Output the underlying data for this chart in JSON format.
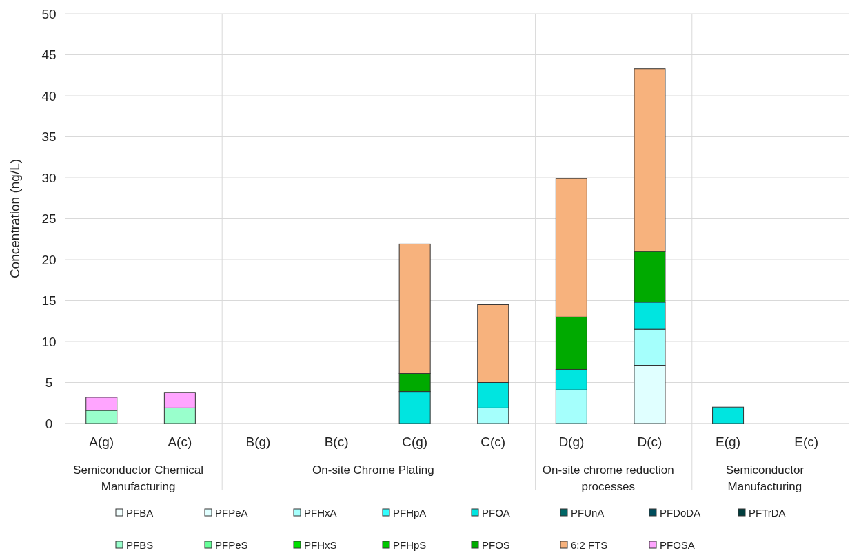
{
  "chart_data": {
    "type": "bar",
    "stacked": true,
    "ylabel": "Concentration (ng/L)",
    "categories": [
      "A(g)",
      "A(c)",
      "B(g)",
      "B(c)",
      "C(g)",
      "C(c)",
      "D(g)",
      "D(c)",
      "E(g)",
      "E(c)"
    ],
    "ylim": [
      0,
      50
    ],
    "yticks": [
      0,
      5,
      10,
      15,
      20,
      25,
      30,
      35,
      40,
      45,
      50
    ],
    "grid": "y",
    "legend": "bottom",
    "series": [
      {
        "name": "PFBA",
        "color": "#f2ffff",
        "values": [
          null,
          null,
          null,
          null,
          null,
          null,
          null,
          null,
          null,
          null
        ]
      },
      {
        "name": "PFPeA",
        "color": "#e0ffff",
        "values": [
          null,
          null,
          null,
          null,
          null,
          null,
          null,
          7.1,
          null,
          null
        ]
      },
      {
        "name": "PFHxA",
        "color": "#a5fffc",
        "values": [
          null,
          null,
          null,
          null,
          null,
          1.9,
          4.1,
          4.4,
          null,
          null
        ]
      },
      {
        "name": "PFHpA",
        "color": "#33ffff",
        "values": [
          null,
          null,
          null,
          null,
          null,
          null,
          null,
          null,
          null,
          null
        ]
      },
      {
        "name": "PFOA",
        "color": "#00e5e0",
        "values": [
          null,
          null,
          null,
          null,
          3.9,
          3.1,
          2.5,
          3.3,
          2.0,
          null
        ]
      },
      {
        "name": "PFUnA",
        "color": "#006666",
        "values": [
          null,
          null,
          null,
          null,
          null,
          null,
          null,
          null,
          null,
          null
        ]
      },
      {
        "name": "PFDoDA",
        "color": "#004d5c",
        "values": [
          null,
          null,
          null,
          null,
          null,
          null,
          null,
          null,
          null,
          null
        ]
      },
      {
        "name": "PFTrDA",
        "color": "#003d3d",
        "values": [
          null,
          null,
          null,
          null,
          null,
          null,
          null,
          null,
          null,
          null
        ]
      },
      {
        "name": "PFBS",
        "color": "#99ffcc",
        "values": [
          1.6,
          1.9,
          null,
          null,
          null,
          null,
          null,
          null,
          null,
          null
        ]
      },
      {
        "name": "PFPeS",
        "color": "#66ff99",
        "values": [
          null,
          null,
          null,
          null,
          null,
          null,
          null,
          null,
          null,
          null
        ]
      },
      {
        "name": "PFHxS",
        "color": "#00e000",
        "values": [
          null,
          null,
          null,
          null,
          null,
          null,
          null,
          null,
          null,
          null
        ]
      },
      {
        "name": "PFHpS",
        "color": "#00c800",
        "values": [
          null,
          null,
          null,
          null,
          null,
          null,
          null,
          null,
          null,
          null
        ]
      },
      {
        "name": "PFOS",
        "color": "#00aa00",
        "values": [
          null,
          null,
          null,
          null,
          2.2,
          null,
          6.4,
          6.2,
          null,
          null
        ]
      },
      {
        "name": "6:2 FTS",
        "color": "#f7b27d",
        "values": [
          null,
          null,
          null,
          null,
          15.8,
          9.5,
          16.9,
          22.3,
          null,
          null
        ]
      },
      {
        "name": "PFOSA",
        "color": "#ffa5ff",
        "values": [
          1.6,
          1.9,
          null,
          null,
          null,
          null,
          null,
          null,
          null,
          null
        ]
      }
    ],
    "annotations": [
      "Semiconductor Chemical Manufacturing",
      "On-site Chrome Plating",
      "On-site chrome reduction processes",
      "Semiconductor Manufacturing"
    ]
  }
}
